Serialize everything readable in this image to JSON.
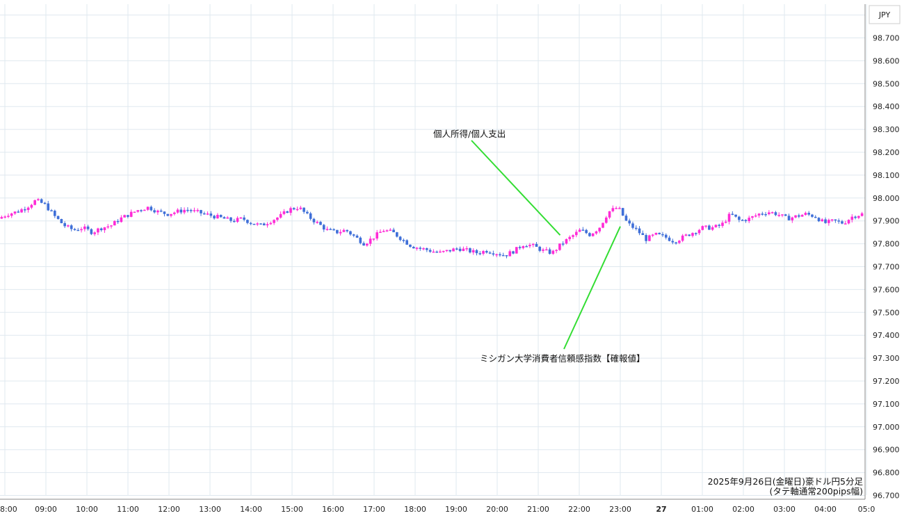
{
  "chart_data": {
    "type": "candlestick",
    "currency_label": "JPY",
    "caption_line1": "2025年9月26日(金曜日)豪ドル円5分足",
    "caption_line2": "(タテ軸通常200pips幅)",
    "y_ticks": [
      "98.700",
      "98.600",
      "98.500",
      "98.400",
      "98.300",
      "98.200",
      "98.100",
      "98.000",
      "97.900",
      "97.800",
      "97.700",
      "97.600",
      "97.500",
      "97.400",
      "97.300",
      "97.200",
      "97.100",
      "97.000",
      "96.900",
      "96.800",
      "96.700"
    ],
    "ylim": [
      96.7,
      98.78
    ],
    "x_ticks": [
      "8:00",
      "09:00",
      "10:00",
      "11:00",
      "12:00",
      "13:00",
      "14:00",
      "15:00",
      "16:00",
      "17:00",
      "18:00",
      "19:00",
      "20:00",
      "21:00",
      "22:00",
      "23:00",
      "27",
      "01:00",
      "02:00",
      "03:00",
      "04:00",
      "05:0"
    ],
    "x_bold_tick": "27",
    "colors": {
      "up": "#ff2bd6",
      "down": "#3f6fd8",
      "grid": "#dfe8ef",
      "annotation_line": "#33dd33"
    },
    "annotations": [
      {
        "label": "個人所得/個人支出",
        "time": "21:30",
        "price": 97.85
      },
      {
        "label": "ミシガン大学消費者信頼感指数【確報値】",
        "time": "23:00",
        "price": 97.9
      }
    ],
    "price_path": [
      97.91,
      97.93,
      97.94,
      97.96,
      97.99,
      97.97,
      97.92,
      97.88,
      97.86,
      97.87,
      97.85,
      97.87,
      97.88,
      97.91,
      97.93,
      97.95,
      97.96,
      97.94,
      97.93,
      97.94,
      97.95,
      97.94,
      97.93,
      97.92,
      97.91,
      97.9,
      97.91,
      97.89,
      97.88,
      97.9,
      97.92,
      97.95,
      97.96,
      97.92,
      97.89,
      97.86,
      97.85,
      97.86,
      97.83,
      97.8,
      97.83,
      97.86,
      97.85,
      97.82,
      97.79,
      97.78,
      97.77,
      97.76,
      97.77,
      97.78,
      97.77,
      97.76,
      97.77,
      97.76,
      97.75,
      97.77,
      97.8,
      97.79,
      97.77,
      97.76,
      97.8,
      97.83,
      97.86,
      97.84,
      97.87,
      97.94,
      97.96,
      97.89,
      97.86,
      97.82,
      97.84,
      97.83,
      97.81,
      97.83,
      97.85,
      97.87,
      97.87,
      97.88,
      97.93,
      97.9,
      97.91,
      97.93,
      97.94,
      97.93,
      97.91,
      97.92,
      97.93,
      97.92,
      97.89,
      97.9,
      97.89,
      97.92,
      97.93
    ]
  }
}
